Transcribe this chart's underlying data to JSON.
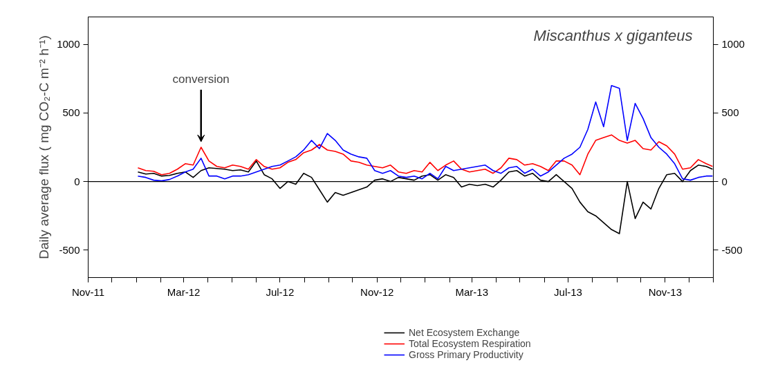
{
  "chart_data": {
    "type": "line",
    "title": "Miscanthus x giganteus",
    "ylabel": "Daily average flux ( mg CO₂-C m⁻² h⁻¹)",
    "x": [
      "2012-01-03",
      "2012-01-13",
      "2012-01-23",
      "2012-02-02",
      "2012-02-12",
      "2012-02-22",
      "2012-03-03",
      "2012-03-13",
      "2012-03-23",
      "2012-04-02",
      "2012-04-12",
      "2012-04-22",
      "2012-05-02",
      "2012-05-12",
      "2012-05-22",
      "2012-06-01",
      "2012-06-11",
      "2012-06-21",
      "2012-07-01",
      "2012-07-11",
      "2012-07-21",
      "2012-07-31",
      "2012-08-10",
      "2012-08-20",
      "2012-08-30",
      "2012-09-09",
      "2012-09-19",
      "2012-09-29",
      "2012-10-09",
      "2012-10-19",
      "2012-10-29",
      "2012-11-08",
      "2012-11-18",
      "2012-11-28",
      "2012-12-08",
      "2012-12-18",
      "2012-12-28",
      "2013-01-07",
      "2013-01-17",
      "2013-01-27",
      "2013-02-06",
      "2013-02-16",
      "2013-02-26",
      "2013-03-08",
      "2013-03-18",
      "2013-03-28",
      "2013-04-07",
      "2013-04-17",
      "2013-04-27",
      "2013-05-07",
      "2013-05-17",
      "2013-05-27",
      "2013-06-06",
      "2013-06-16",
      "2013-06-26",
      "2013-07-06",
      "2013-07-16",
      "2013-07-26",
      "2013-08-05",
      "2013-08-15",
      "2013-08-25",
      "2013-09-04",
      "2013-09-14",
      "2013-09-24",
      "2013-10-04",
      "2013-10-14",
      "2013-10-24",
      "2013-11-03",
      "2013-11-13",
      "2013-11-23",
      "2013-12-03",
      "2013-12-13",
      "2013-12-23",
      "2013-12-31"
    ],
    "series": [
      {
        "name": "Net Ecosystem Exchange",
        "color": "#000000",
        "values": [
          70,
          55,
          60,
          40,
          45,
          60,
          70,
          30,
          80,
          100,
          95,
          90,
          80,
          85,
          70,
          150,
          50,
          20,
          -50,
          0,
          -20,
          60,
          30,
          -60,
          -150,
          -80,
          -100,
          -80,
          -60,
          -40,
          10,
          20,
          0,
          30,
          20,
          10,
          40,
          50,
          10,
          50,
          30,
          -40,
          -20,
          -30,
          -20,
          -40,
          10,
          70,
          80,
          40,
          60,
          10,
          0,
          50,
          0,
          -50,
          -150,
          -220,
          -250,
          -300,
          -350,
          -380,
          0,
          -270,
          -150,
          -200,
          -50,
          50,
          60,
          0,
          80,
          120,
          110,
          90
        ]
      },
      {
        "name": "Total Ecosystem Respiration",
        "color": "#ff0000",
        "values": [
          100,
          80,
          75,
          50,
          60,
          90,
          130,
          120,
          250,
          150,
          110,
          100,
          120,
          110,
          90,
          160,
          110,
          90,
          100,
          140,
          160,
          210,
          230,
          270,
          230,
          220,
          200,
          150,
          140,
          120,
          110,
          100,
          120,
          70,
          60,
          80,
          70,
          140,
          80,
          120,
          150,
          90,
          70,
          80,
          90,
          60,
          100,
          170,
          160,
          120,
          130,
          110,
          80,
          150,
          150,
          120,
          50,
          200,
          300,
          320,
          340,
          300,
          280,
          300,
          240,
          230,
          290,
          260,
          200,
          90,
          100,
          160,
          130,
          110
        ]
      },
      {
        "name": "Gross Primary Productivity",
        "color": "#0000ff",
        "values": [
          40,
          30,
          10,
          5,
          15,
          40,
          70,
          90,
          170,
          40,
          40,
          20,
          40,
          40,
          50,
          70,
          90,
          110,
          120,
          150,
          180,
          230,
          300,
          240,
          350,
          300,
          230,
          200,
          180,
          170,
          80,
          60,
          80,
          40,
          30,
          40,
          20,
          60,
          20,
          110,
          80,
          90,
          100,
          110,
          120,
          80,
          60,
          100,
          110,
          60,
          90,
          40,
          70,
          120,
          170,
          200,
          250,
          380,
          580,
          400,
          700,
          680,
          300,
          570,
          460,
          320,
          250,
          200,
          130,
          20,
          10,
          30,
          40,
          40
        ]
      }
    ],
    "xlim": [
      "2011-11-01",
      "2014-01-01"
    ],
    "xticks": [
      {
        "value": "2011-11-01",
        "label": "Nov-11"
      },
      {
        "value": "2011-12-01",
        "label": null
      },
      {
        "value": "2012-01-01",
        "label": null
      },
      {
        "value": "2012-02-01",
        "label": null
      },
      {
        "value": "2012-03-01",
        "label": "Mar-12"
      },
      {
        "value": "2012-04-01",
        "label": null
      },
      {
        "value": "2012-05-01",
        "label": null
      },
      {
        "value": "2012-06-01",
        "label": null
      },
      {
        "value": "2012-07-01",
        "label": "Jul-12"
      },
      {
        "value": "2012-08-01",
        "label": null
      },
      {
        "value": "2012-09-01",
        "label": null
      },
      {
        "value": "2012-10-01",
        "label": null
      },
      {
        "value": "2012-11-01",
        "label": "Nov-12"
      },
      {
        "value": "2012-12-01",
        "label": null
      },
      {
        "value": "2013-01-01",
        "label": null
      },
      {
        "value": "2013-02-01",
        "label": null
      },
      {
        "value": "2013-03-01",
        "label": "Mar-13"
      },
      {
        "value": "2013-04-01",
        "label": null
      },
      {
        "value": "2013-05-01",
        "label": null
      },
      {
        "value": "2013-06-01",
        "label": null
      },
      {
        "value": "2013-07-01",
        "label": "Jul-13"
      },
      {
        "value": "2013-08-01",
        "label": null
      },
      {
        "value": "2013-09-01",
        "label": null
      },
      {
        "value": "2013-10-01",
        "label": null
      },
      {
        "value": "2013-11-01",
        "label": "Nov-13"
      },
      {
        "value": "2013-12-01",
        "label": null
      },
      {
        "value": "2014-01-01",
        "label": null
      }
    ],
    "ylim": [
      -700,
      1200
    ],
    "yticks": [
      -500,
      0,
      500,
      1000
    ],
    "y2lim": [
      -700,
      1200
    ],
    "y2ticks": [
      -500,
      0,
      500,
      1000
    ],
    "ref_lines": [
      {
        "axis": "y",
        "value": 0,
        "color": "#000000"
      }
    ],
    "annotations": [
      {
        "text": "conversion",
        "x": "2012-03-23",
        "y": 250
      }
    ],
    "legend": "bottom",
    "grid": false,
    "line_style": "solid",
    "marker": "none"
  }
}
